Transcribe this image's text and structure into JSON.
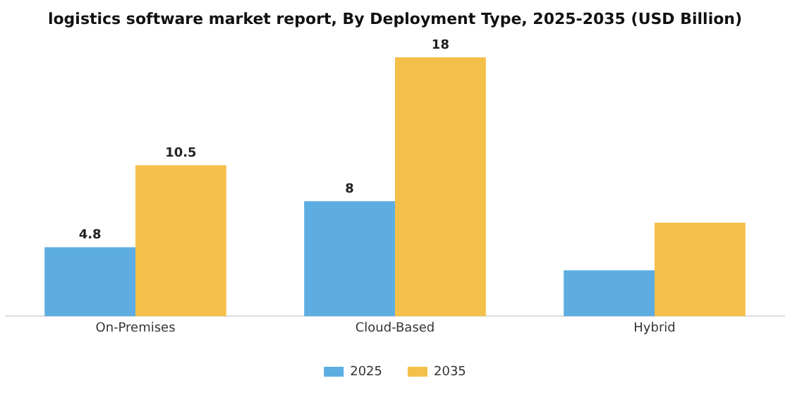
{
  "chart_data": {
    "type": "bar",
    "title": "logistics software market report, By Deployment Type, 2025-2035 (USD Billion)",
    "categories": [
      "On-Premises",
      "Cloud-Based",
      "Hybrid"
    ],
    "series": [
      {
        "name": "2025",
        "color": "#5dade2",
        "values": [
          4.8,
          8,
          3.2
        ],
        "value_labels": [
          "4.8",
          "8",
          null
        ]
      },
      {
        "name": "2035",
        "color": "#f5c04a",
        "values": [
          10.5,
          18,
          6.5
        ],
        "value_labels": [
          "10.5",
          "18",
          null
        ]
      }
    ],
    "legend": "bottom",
    "tick_labels": "x",
    "grid": false
  }
}
